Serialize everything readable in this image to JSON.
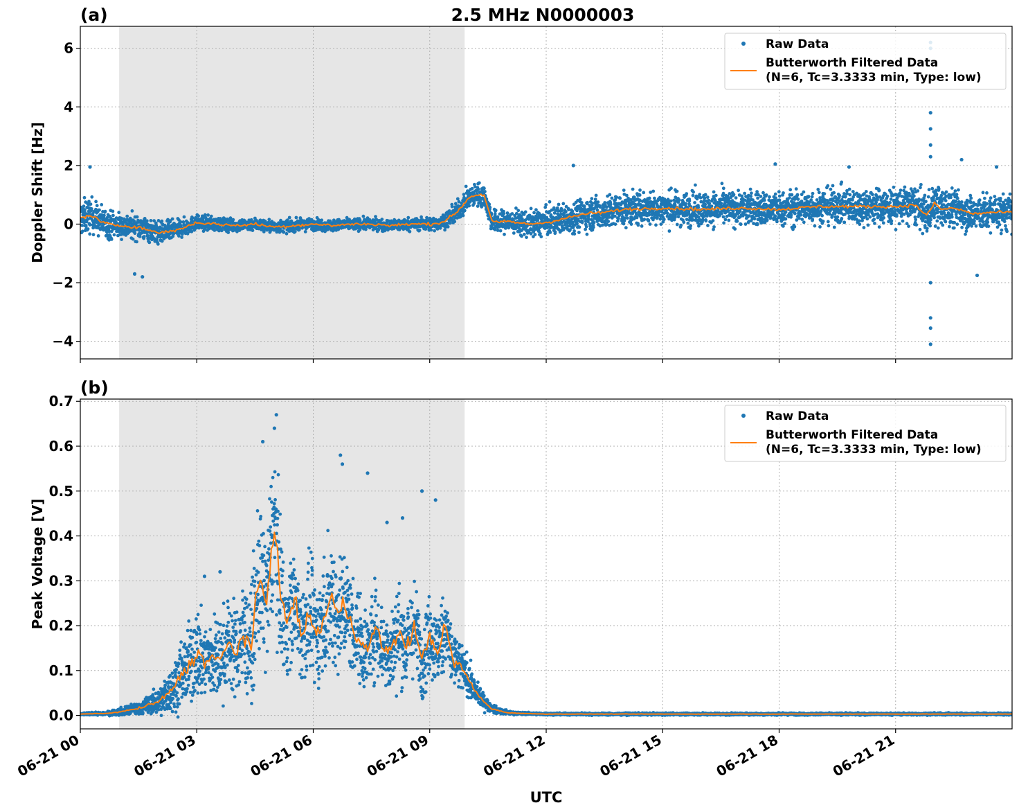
{
  "figure": {
    "title": "2.5 MHz N0000003",
    "xlabel": "UTC"
  },
  "colors": {
    "raw": "#1f77b4",
    "filtered": "#ff7f0e",
    "shade": "#e6e6e6",
    "grid": "#b0b0b0"
  },
  "chart_data": [
    {
      "type": "scatter",
      "panel_label": "(a)",
      "ylabel": "Doppler Shift [Hz]",
      "xlim_hours": [
        0,
        24
      ],
      "ylim": [
        -4.6,
        6.75
      ],
      "x_ticks": [
        0,
        3,
        6,
        9,
        12,
        15,
        18,
        21
      ],
      "x_tick_labels": [
        "06-21 00",
        "06-21 03",
        "06-21 06",
        "06-21 09",
        "06-21 12",
        "06-21 15",
        "06-21 18",
        "06-21 21"
      ],
      "y_ticks": [
        -4,
        -2,
        0,
        2,
        4,
        6
      ],
      "y_tick_labels": [
        "−4",
        "−2",
        "0",
        "2",
        "4",
        "6"
      ],
      "shaded_span_hours": [
        1.0,
        9.9
      ],
      "grid": true,
      "legend": {
        "placement": "top-right",
        "entries": [
          "Raw Data",
          "Butterworth Filtered Data",
          "(N=6, Tc=3.3333 min, Type: low)"
        ]
      },
      "series": [
        {
          "name": "Butterworth Filtered Data",
          "kind": "line",
          "x": [
            0,
            0.3,
            0.5,
            0.7,
            1.0,
            1.5,
            2.0,
            2.5,
            3.0,
            3.5,
            4.0,
            4.5,
            5.0,
            5.5,
            6.0,
            6.5,
            7.0,
            7.5,
            8.0,
            8.5,
            9.0,
            9.3,
            9.6,
            9.8,
            10.0,
            10.2,
            10.4,
            10.6,
            10.8,
            11.0,
            11.5,
            12.0,
            12.5,
            13.0,
            13.5,
            14.0,
            15.0,
            16.0,
            17.0,
            18.0,
            19.0,
            20.0,
            21.0,
            21.5,
            21.8,
            22.0,
            22.2,
            22.5,
            23.0,
            23.5,
            24.0
          ],
          "y": [
            0.2,
            0.3,
            0.1,
            0.0,
            -0.05,
            -0.1,
            -0.3,
            -0.2,
            0.05,
            0.0,
            -0.05,
            0.0,
            -0.1,
            -0.05,
            0.0,
            -0.05,
            0.0,
            0.0,
            -0.05,
            0.0,
            0.0,
            0.05,
            0.3,
            0.55,
            0.9,
            1.0,
            1.0,
            0.1,
            0.05,
            0.1,
            0.0,
            0.05,
            0.2,
            0.35,
            0.4,
            0.5,
            0.55,
            0.5,
            0.55,
            0.5,
            0.6,
            0.6,
            0.6,
            0.65,
            0.3,
            0.7,
            0.5,
            0.55,
            0.35,
            0.4,
            0.4
          ]
        },
        {
          "name": "Raw Data",
          "kind": "scatter",
          "spread_x": [
            0,
            1.0,
            2.0,
            3.0,
            4.0,
            6.0,
            8.0,
            9.3,
            9.8,
            10.3,
            10.6,
            11.0,
            11.5,
            12.0,
            13.0,
            15.0,
            18.0,
            21.0,
            22.0,
            23.0,
            24.0
          ],
          "spread": [
            0.8,
            0.55,
            0.5,
            0.32,
            0.28,
            0.25,
            0.25,
            0.3,
            0.45,
            0.5,
            0.5,
            0.5,
            0.55,
            0.6,
            0.7,
            0.75,
            0.75,
            0.8,
            0.9,
            0.8,
            0.8
          ],
          "outliers": [
            [
              21.9,
              3.8
            ],
            [
              21.9,
              3.25
            ],
            [
              21.9,
              2.7
            ],
            [
              21.9,
              2.3
            ],
            [
              21.9,
              -2.0
            ],
            [
              21.9,
              -3.2
            ],
            [
              21.9,
              -3.55
            ],
            [
              21.9,
              -4.1
            ],
            [
              21.9,
              6.2
            ],
            [
              21.9,
              6.0
            ],
            [
              1.4,
              -1.7
            ],
            [
              1.6,
              -1.8
            ],
            [
              23.1,
              -1.75
            ],
            [
              22.7,
              2.2
            ],
            [
              0.25,
              1.95
            ],
            [
              12.7,
              2.0
            ],
            [
              17.9,
              2.05
            ],
            [
              19.8,
              1.95
            ],
            [
              23.6,
              1.95
            ]
          ]
        }
      ]
    },
    {
      "type": "scatter",
      "panel_label": "(b)",
      "ylabel": "Peak Voltage [V]",
      "xlim_hours": [
        0,
        24
      ],
      "ylim": [
        -0.03,
        0.705
      ],
      "x_ticks": [
        0,
        3,
        6,
        9,
        12,
        15,
        18,
        21
      ],
      "x_tick_labels": [
        "06-21 00",
        "06-21 03",
        "06-21 06",
        "06-21 09",
        "06-21 12",
        "06-21 15",
        "06-21 18",
        "06-21 21"
      ],
      "y_ticks": [
        0.0,
        0.1,
        0.2,
        0.3,
        0.4,
        0.5,
        0.6,
        0.7
      ],
      "y_tick_labels": [
        "0.0",
        "0.1",
        "0.2",
        "0.3",
        "0.4",
        "0.5",
        "0.6",
        "0.7"
      ],
      "shaded_span_hours": [
        1.0,
        9.9
      ],
      "grid": true,
      "legend": {
        "placement": "top-right",
        "entries": [
          "Raw Data",
          "Butterworth Filtered Data",
          "(N=6, Tc=3.3333 min, Type: low)"
        ]
      },
      "series": [
        {
          "name": "Butterworth Filtered Data",
          "kind": "line",
          "x": [
            0,
            0.5,
            0.8,
            1.0,
            1.3,
            1.6,
            2.0,
            2.3,
            2.6,
            2.8,
            3.0,
            3.2,
            3.4,
            3.6,
            3.8,
            4.0,
            4.2,
            4.4,
            4.6,
            4.8,
            4.9,
            5.0,
            5.1,
            5.2,
            5.3,
            5.5,
            5.7,
            5.9,
            6.1,
            6.3,
            6.5,
            6.6,
            6.8,
            7.0,
            7.2,
            7.4,
            7.6,
            7.8,
            8.0,
            8.2,
            8.4,
            8.6,
            8.8,
            9.0,
            9.2,
            9.4,
            9.6,
            9.8,
            10.0,
            10.2,
            10.4,
            10.6,
            10.8,
            11.0,
            11.5,
            12.0,
            13.0,
            24.0
          ],
          "y": [
            0.003,
            0.004,
            0.005,
            0.008,
            0.012,
            0.018,
            0.03,
            0.05,
            0.09,
            0.11,
            0.14,
            0.12,
            0.13,
            0.12,
            0.16,
            0.14,
            0.18,
            0.15,
            0.3,
            0.25,
            0.35,
            0.44,
            0.32,
            0.25,
            0.2,
            0.26,
            0.18,
            0.22,
            0.18,
            0.22,
            0.27,
            0.22,
            0.25,
            0.2,
            0.17,
            0.14,
            0.2,
            0.15,
            0.14,
            0.19,
            0.15,
            0.2,
            0.12,
            0.18,
            0.14,
            0.2,
            0.12,
            0.11,
            0.08,
            0.05,
            0.03,
            0.015,
            0.01,
            0.006,
            0.004,
            0.003,
            0.003,
            0.003
          ],
          "spread": [
            0.003,
            0.004,
            0.006,
            0.01,
            0.015,
            0.02,
            0.035,
            0.06,
            0.09,
            0.11,
            0.13,
            0.12,
            0.12,
            0.12,
            0.13,
            0.13,
            0.15,
            0.15,
            0.2,
            0.2,
            0.22,
            0.22,
            0.2,
            0.18,
            0.15,
            0.15,
            0.14,
            0.15,
            0.15,
            0.17,
            0.2,
            0.18,
            0.16,
            0.14,
            0.13,
            0.12,
            0.13,
            0.12,
            0.12,
            0.13,
            0.12,
            0.13,
            0.11,
            0.12,
            0.11,
            0.11,
            0.09,
            0.07,
            0.05,
            0.035,
            0.02,
            0.012,
            0.008,
            0.005,
            0.003,
            0.003,
            0.003,
            0.003
          ]
        },
        {
          "name": "Raw Data",
          "kind": "scatter",
          "outliers": [
            [
              5.05,
              0.67
            ],
            [
              5.0,
              0.64
            ],
            [
              6.7,
              0.58
            ],
            [
              6.75,
              0.56
            ],
            [
              4.7,
              0.61
            ],
            [
              7.4,
              0.54
            ],
            [
              8.8,
              0.5
            ],
            [
              9.15,
              0.48
            ],
            [
              3.6,
              0.32
            ],
            [
              3.2,
              0.31
            ],
            [
              8.3,
              0.44
            ],
            [
              7.9,
              0.43
            ],
            [
              21.9,
              0.005
            ]
          ]
        }
      ]
    }
  ]
}
